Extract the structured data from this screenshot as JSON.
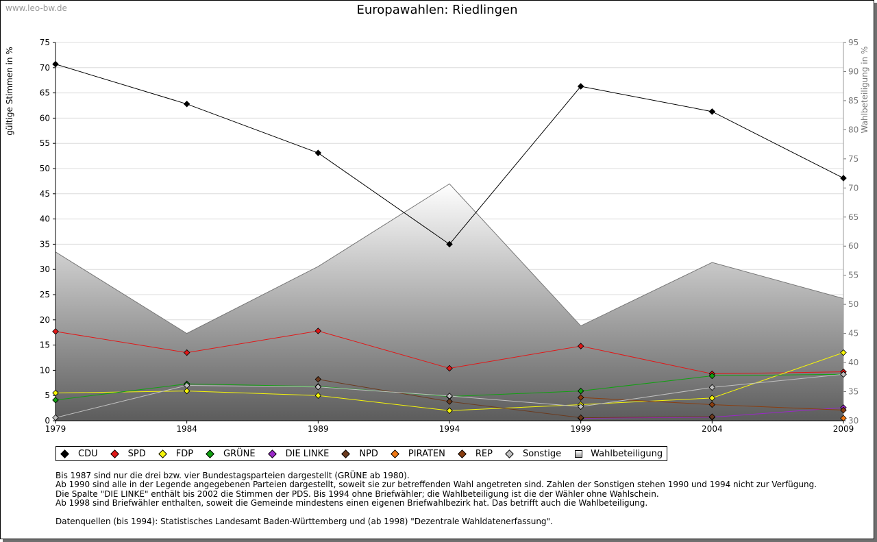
{
  "watermark": "www.leo-bw.de",
  "colors": {
    "CDU": "#000000",
    "SPD": "#e01818",
    "FDP": "#f5f50a",
    "GRÜNE": "#11a011",
    "DIE LINKE": "#9a28c8",
    "NPD": "#6b3a1e",
    "PIRATEN": "#f07814",
    "REP": "#8a3e10",
    "Sonstige": "#c0c0c0",
    "Wahlbeteiligung": "#a0a0a0"
  },
  "chart_data": {
    "type": "line",
    "title": "Europawahlen: Riedlingen",
    "ylabel": "gültige Stimmen in %",
    "y2label": "Wahlbeteiligung in %",
    "x": [
      1979,
      1984,
      1989,
      1994,
      1999,
      2004,
      2009
    ],
    "ylim": [
      0,
      75
    ],
    "y2lim": [
      30,
      95
    ],
    "yticks": [
      0,
      5,
      10,
      15,
      20,
      25,
      30,
      35,
      40,
      45,
      50,
      55,
      60,
      65,
      70,
      75
    ],
    "y2ticks": [
      30,
      35,
      40,
      45,
      50,
      55,
      60,
      65,
      70,
      75,
      80,
      85,
      90,
      95
    ],
    "grid": true,
    "series": [
      {
        "name": "CDU",
        "values": [
          70.7,
          62.8,
          53.1,
          35.0,
          66.3,
          61.3,
          48.1
        ]
      },
      {
        "name": "SPD",
        "values": [
          17.7,
          13.5,
          17.8,
          10.4,
          14.8,
          9.3,
          9.7
        ]
      },
      {
        "name": "FDP",
        "values": [
          5.5,
          5.9,
          5.0,
          2.0,
          3.2,
          4.5,
          13.5
        ]
      },
      {
        "name": "GRÜNE",
        "values": [
          4.1,
          7.3,
          6.8,
          4.8,
          5.9,
          8.9,
          9.2
        ]
      },
      {
        "name": "DIE LINKE",
        "values": [
          null,
          null,
          null,
          null,
          0.5,
          0.7,
          2.6
        ]
      },
      {
        "name": "NPD",
        "values": [
          null,
          null,
          8.2,
          3.8,
          0.6,
          0.8,
          null
        ]
      },
      {
        "name": "PIRATEN",
        "values": [
          null,
          null,
          null,
          null,
          null,
          null,
          0.5
        ]
      },
      {
        "name": "REP",
        "values": [
          null,
          null,
          null,
          null,
          4.6,
          3.2,
          2.1
        ]
      },
      {
        "name": "Sonstige",
        "values": [
          0.6,
          7.0,
          6.7,
          4.9,
          2.8,
          6.6,
          9.2
        ]
      },
      {
        "name": "Wahlbeteiligung",
        "axis": "right",
        "type": "area",
        "values": [
          59.0,
          45.0,
          56.5,
          70.7,
          46.3,
          57.2,
          51.0
        ]
      }
    ]
  },
  "legend": [
    {
      "label": "CDU",
      "key": "CDU",
      "shape": "diamond"
    },
    {
      "label": "SPD",
      "key": "SPD",
      "shape": "diamond"
    },
    {
      "label": "FDP",
      "key": "FDP",
      "shape": "diamond"
    },
    {
      "label": "GRÜNE",
      "key": "GRÜNE",
      "shape": "diamond"
    },
    {
      "label": "DIE LINKE",
      "key": "DIE LINKE",
      "shape": "diamond"
    },
    {
      "label": "NPD",
      "key": "NPD",
      "shape": "diamond"
    },
    {
      "label": "PIRATEN",
      "key": "PIRATEN",
      "shape": "diamond"
    },
    {
      "label": "REP",
      "key": "REP",
      "shape": "diamond"
    },
    {
      "label": "Sonstige",
      "key": "Sonstige",
      "shape": "diamond"
    },
    {
      "label": "Wahlbeteiligung",
      "key": "Wahlbeteiligung",
      "shape": "square"
    }
  ],
  "notes": [
    "Bis 1987 sind nur die drei bzw. vier Bundestagsparteien dargestellt (GRÜNE ab 1980).",
    "Ab 1990 sind alle in der Legende angegebenen Parteien dargestellt, soweit sie zur betreffenden Wahl angetreten sind. Zahlen der Sonstigen stehen 1990 und 1994 nicht zur Verfügung.",
    "Die Spalte \"DIE LINKE\" enthält bis 2002 die Stimmen der PDS. Bis 1994 ohne Briefwähler; die Wahlbeteiligung ist die der Wähler ohne Wahlschein.",
    "Ab 1998 sind Briefwähler enthalten, soweit die Gemeinde mindestens einen eigenen Briefwahlbezirk hat. Das betrifft auch die Wahlbeteiligung.",
    "",
    "Datenquellen (bis 1994): Statistisches Landesamt Baden-Württemberg und (ab 1998) \"Dezentrale Wahldatenerfassung\"."
  ]
}
